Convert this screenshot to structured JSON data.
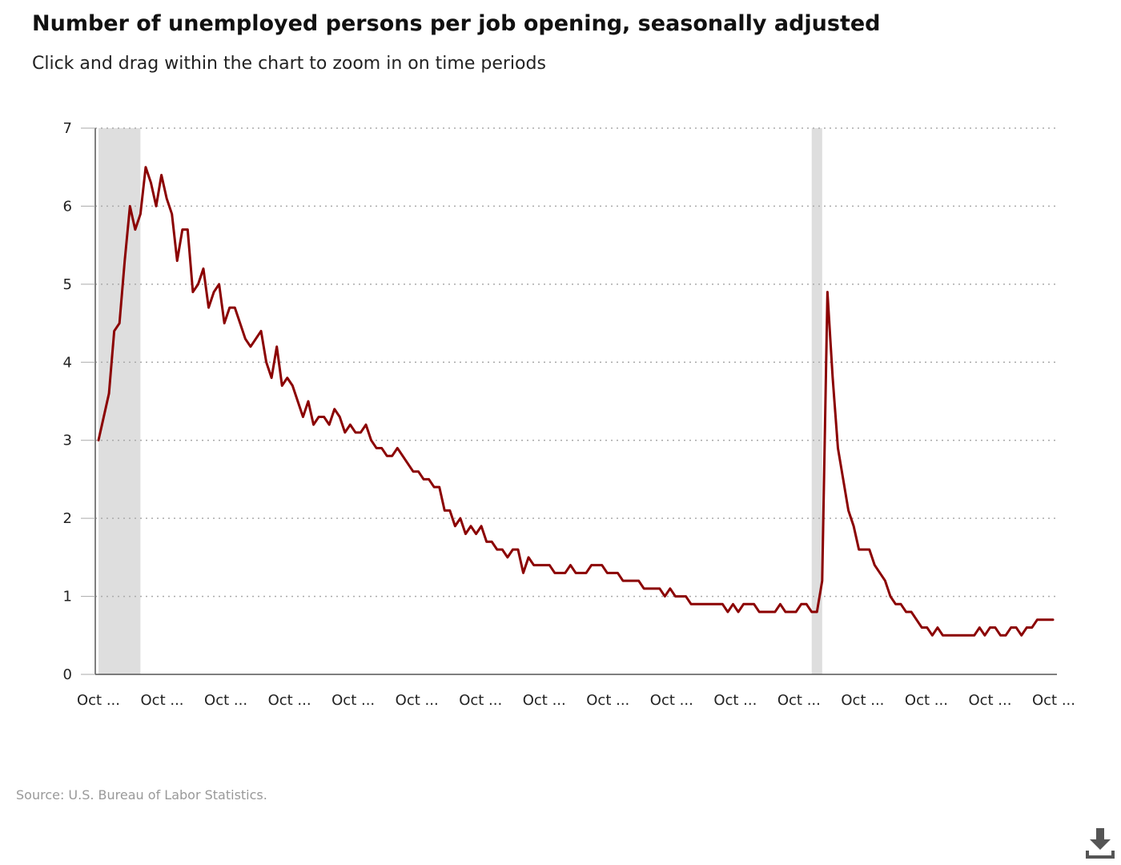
{
  "header": {
    "title": "Number of unemployed persons per job opening, seasonally adjusted",
    "subtitle": "Click and drag within the chart to zoom in on time periods"
  },
  "footer": {
    "source": "Source: U.S. Bureau of Labor Statistics."
  },
  "download_icon": "download-icon",
  "colors": {
    "line": "#8b0000",
    "recession": "#dedede",
    "grid": "#aaaaaa",
    "axis": "#555555"
  },
  "chart_data": {
    "type": "line",
    "title": "Number of unemployed persons per job opening, seasonally adjusted",
    "ylim": [
      0,
      7
    ],
    "yticks": [
      0,
      1,
      2,
      3,
      4,
      5,
      6,
      7
    ],
    "grid": "horizontal dotted",
    "x_tick_labels": [
      "Oct ...",
      "Oct ...",
      "Oct ...",
      "Oct ...",
      "Oct ...",
      "Oct ...",
      "Oct ...",
      "Oct ...",
      "Oct ...",
      "Oct ...",
      "Oct ...",
      "Oct ...",
      "Oct ...",
      "Oct ...",
      "Oct ...",
      "Oct ..."
    ],
    "recession_bands": [
      [
        0,
        8
      ],
      [
        136,
        138
      ]
    ],
    "series": [
      {
        "values": [
          3.0,
          3.3,
          3.6,
          4.4,
          4.5,
          5.3,
          6.0,
          5.7,
          5.9,
          6.5,
          6.3,
          6.0,
          6.4,
          6.1,
          5.9,
          5.3,
          5.7,
          5.7,
          4.9,
          5.0,
          5.2,
          4.7,
          4.9,
          5.0,
          4.5,
          4.7,
          4.7,
          4.5,
          4.3,
          4.2,
          4.3,
          4.4,
          4.0,
          3.8,
          4.2,
          3.7,
          3.8,
          3.7,
          3.5,
          3.3,
          3.5,
          3.2,
          3.3,
          3.3,
          3.2,
          3.4,
          3.3,
          3.1,
          3.2,
          3.1,
          3.1,
          3.2,
          3.0,
          2.9,
          2.9,
          2.8,
          2.8,
          2.9,
          2.8,
          2.7,
          2.6,
          2.6,
          2.5,
          2.5,
          2.4,
          2.4,
          2.1,
          2.1,
          1.9,
          2.0,
          1.8,
          1.9,
          1.8,
          1.9,
          1.7,
          1.7,
          1.6,
          1.6,
          1.5,
          1.6,
          1.6,
          1.3,
          1.5,
          1.4,
          1.4,
          1.4,
          1.4,
          1.3,
          1.3,
          1.3,
          1.4,
          1.3,
          1.3,
          1.3,
          1.4,
          1.4,
          1.4,
          1.3,
          1.3,
          1.3,
          1.2,
          1.2,
          1.2,
          1.2,
          1.1,
          1.1,
          1.1,
          1.1,
          1.0,
          1.1,
          1.0,
          1.0,
          1.0,
          0.9,
          0.9,
          0.9,
          0.9,
          0.9,
          0.9,
          0.9,
          0.8,
          0.9,
          0.8,
          0.9,
          0.9,
          0.9,
          0.8,
          0.8,
          0.8,
          0.8,
          0.9,
          0.8,
          0.8,
          0.8,
          0.9,
          0.9,
          0.8,
          0.8,
          1.2,
          4.9,
          3.8,
          2.9,
          2.5,
          2.1,
          1.9,
          1.6,
          1.6,
          1.6,
          1.4,
          1.3,
          1.2,
          1.0,
          0.9,
          0.9,
          0.8,
          0.8,
          0.7,
          0.6,
          0.6,
          0.5,
          0.6,
          0.5,
          0.5,
          0.5,
          0.5,
          0.5,
          0.5,
          0.5,
          0.6,
          0.5,
          0.6,
          0.6,
          0.5,
          0.5,
          0.6,
          0.6,
          0.5,
          0.6,
          0.6,
          0.7,
          0.7,
          0.7,
          0.7
        ]
      }
    ]
  }
}
